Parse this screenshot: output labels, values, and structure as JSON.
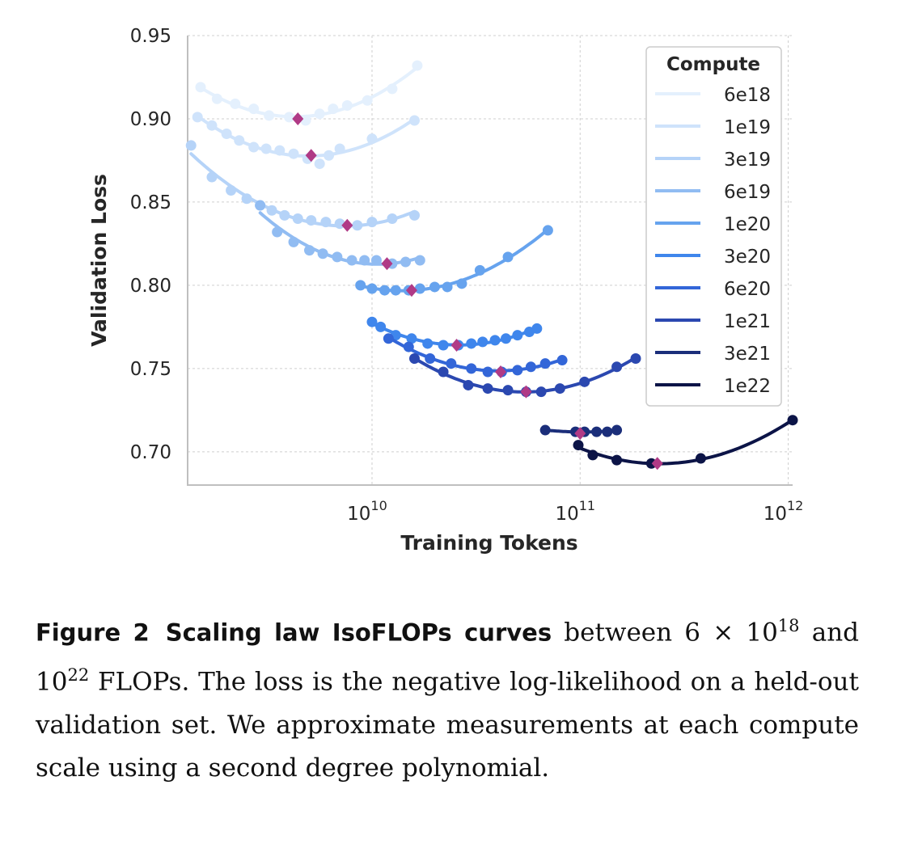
{
  "chart_data": {
    "type": "line",
    "xlabel": "Training Tokens",
    "ylabel": "Validation Loss",
    "xscale": "log",
    "xlim": [
      1300000000.0,
      1050000000000.0
    ],
    "ylim": [
      0.68,
      0.95
    ],
    "x_ticks": [
      {
        "value": 10000000000.0,
        "base": "10",
        "exp": "10"
      },
      {
        "value": 100000000000.0,
        "base": "10",
        "exp": "11"
      },
      {
        "value": 1000000000000.0,
        "base": "10",
        "exp": "12"
      }
    ],
    "y_ticks": [
      "0.70",
      "0.75",
      "0.80",
      "0.85",
      "0.90",
      "0.95"
    ],
    "grid": true,
    "legend": {
      "title": "Compute",
      "position": "top-right"
    },
    "optimum_marker_color": "#b03a86",
    "series": [
      {
        "name": "6e18",
        "color": "#e4f0fd",
        "x": [
          1500000000.0,
          1800000000.0,
          2200000000.0,
          2700000000.0,
          3200000000.0,
          4000000000.0,
          4800000000.0,
          5600000000.0,
          6500000000.0,
          7600000000.0,
          9500000000.0,
          12500000000.0,
          16500000000.0
        ],
        "y": [
          0.919,
          0.912,
          0.909,
          0.906,
          0.902,
          0.901,
          0.899,
          0.903,
          0.906,
          0.908,
          0.911,
          0.918,
          0.932
        ],
        "optimum": [
          4400000000.0,
          0.9
        ]
      },
      {
        "name": "1e19",
        "color": "#cfe3fb",
        "x": [
          1450000000.0,
          1700000000.0,
          2000000000.0,
          2300000000.0,
          2700000000.0,
          3100000000.0,
          3600000000.0,
          4200000000.0,
          4900000000.0,
          5600000000.0,
          6200000000.0,
          7000000000.0,
          10000000000.0,
          16000000000.0
        ],
        "y": [
          0.901,
          0.896,
          0.891,
          0.887,
          0.883,
          0.882,
          0.881,
          0.879,
          0.876,
          0.873,
          0.878,
          0.882,
          0.888,
          0.899
        ],
        "optimum": [
          5100000000.0,
          0.878
        ]
      },
      {
        "name": "3e19",
        "color": "#b5d3f8",
        "x": [
          1350000000.0,
          1700000000.0,
          2100000000.0,
          2500000000.0,
          2900000000.0,
          3300000000.0,
          3800000000.0,
          4400000000.0,
          5100000000.0,
          6000000000.0,
          7000000000.0,
          8500000000.0,
          10000000000.0,
          12500000000.0,
          16000000000.0
        ],
        "y": [
          0.884,
          0.865,
          0.857,
          0.852,
          0.848,
          0.845,
          0.842,
          0.84,
          0.839,
          0.838,
          0.837,
          0.836,
          0.838,
          0.84,
          0.842
        ],
        "optimum": [
          7600000000.0,
          0.836
        ]
      },
      {
        "name": "6e19",
        "color": "#91bcf2",
        "x": [
          2900000000.0,
          3500000000.0,
          4200000000.0,
          5000000000.0,
          5800000000.0,
          6800000000.0,
          8000000000.0,
          9200000000.0,
          10500000000.0,
          12500000000.0,
          14500000000.0,
          17000000000.0
        ],
        "y": [
          0.848,
          0.832,
          0.826,
          0.821,
          0.819,
          0.817,
          0.815,
          0.815,
          0.815,
          0.813,
          0.814,
          0.815
        ],
        "optimum": [
          11800000000.0,
          0.813
        ]
      },
      {
        "name": "1e20",
        "color": "#66a3ee",
        "x": [
          8800000000.0,
          10000000000.0,
          11500000000.0,
          13000000000.0,
          15000000000.0,
          17000000000.0,
          20000000000.0,
          23000000000.0,
          27000000000.0,
          33000000000.0,
          45000000000.0,
          70000000000.0
        ],
        "y": [
          0.8,
          0.798,
          0.797,
          0.797,
          0.797,
          0.798,
          0.799,
          0.799,
          0.801,
          0.809,
          0.817,
          0.833
        ],
        "optimum": [
          15500000000.0,
          0.797
        ]
      },
      {
        "name": "3e20",
        "color": "#3f86ec",
        "x": [
          10000000000.0,
          11000000000.0,
          13000000000.0,
          15500000000.0,
          18500000000.0,
          22000000000.0,
          26000000000.0,
          30000000000.0,
          34000000000.0,
          39000000000.0,
          44000000000.0,
          50000000000.0,
          57000000000.0,
          62000000000.0
        ],
        "y": [
          0.778,
          0.775,
          0.77,
          0.768,
          0.765,
          0.764,
          0.764,
          0.765,
          0.766,
          0.767,
          0.768,
          0.77,
          0.772,
          0.774
        ],
        "optimum": [
          25500000000.0,
          0.764
        ]
      },
      {
        "name": "6e20",
        "color": "#3366d8",
        "x": [
          12000000000.0,
          15000000000.0,
          19000000000.0,
          24000000000.0,
          30000000000.0,
          36000000000.0,
          42000000000.0,
          50000000000.0,
          58000000000.0,
          68000000000.0,
          82000000000.0
        ],
        "y": [
          0.768,
          0.763,
          0.756,
          0.753,
          0.75,
          0.748,
          0.748,
          0.749,
          0.751,
          0.753,
          0.755
        ],
        "optimum": [
          41500000000.0,
          0.748
        ]
      },
      {
        "name": "1e21",
        "color": "#2b48b0",
        "x": [
          16000000000.0,
          22000000000.0,
          29000000000.0,
          36000000000.0,
          45000000000.0,
          55000000000.0,
          65000000000.0,
          80000000000.0,
          105000000000.0,
          150000000000.0,
          185000000000.0
        ],
        "y": [
          0.756,
          0.748,
          0.74,
          0.738,
          0.737,
          0.736,
          0.736,
          0.738,
          0.742,
          0.751,
          0.756
        ],
        "optimum": [
          55000000000.0,
          0.736
        ]
      },
      {
        "name": "3e21",
        "color": "#1b2e7a",
        "x": [
          68000000000.0,
          95000000000.0,
          105000000000.0,
          120000000000.0,
          135000000000.0,
          150000000000.0
        ],
        "y": [
          0.713,
          0.712,
          0.712,
          0.712,
          0.712,
          0.713
        ],
        "optimum": [
          100000000000.0,
          0.711
        ]
      },
      {
        "name": "1e22",
        "color": "#0c1447",
        "x": [
          98000000000.0,
          115000000000.0,
          150000000000.0,
          220000000000.0,
          380000000000.0,
          1050000000000.0
        ],
        "y": [
          0.704,
          0.698,
          0.695,
          0.693,
          0.696,
          0.719
        ],
        "optimum": [
          235000000000.0,
          0.693
        ]
      }
    ]
  },
  "caption": {
    "label": "Figure 2",
    "bold_title": "Scaling law IsoFLOPs curves",
    "text_1": "between 6 × 10",
    "sup_1": "18",
    "text_2": "and 10",
    "sup_2": "22",
    "text_3": "FLOPs. The loss is the negative log-likelihood on a held-out validation set. We approximate measurements at each compute scale using a second degree polynomial."
  }
}
